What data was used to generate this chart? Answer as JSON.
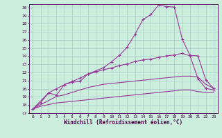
{
  "xlabel": "Windchill (Refroidissement éolien,°C)",
  "bg_color": "#cceedd",
  "line_color": "#993399",
  "grid_color": "#aacccc",
  "xlim": [
    -0.5,
    23.5
  ],
  "ylim": [
    17,
    30.4
  ],
  "yticks": [
    17,
    18,
    19,
    20,
    21,
    22,
    23,
    24,
    25,
    26,
    27,
    28,
    29,
    30
  ],
  "xticks": [
    0,
    1,
    2,
    3,
    4,
    5,
    6,
    7,
    8,
    9,
    10,
    11,
    12,
    13,
    14,
    15,
    16,
    17,
    18,
    19,
    20,
    21,
    22,
    23
  ],
  "s1_x": [
    0,
    1,
    2,
    3,
    4,
    5,
    6,
    7,
    8,
    9,
    10,
    11,
    12,
    13,
    14,
    15,
    16,
    17,
    18,
    19,
    20,
    21,
    22,
    23
  ],
  "s1_y": [
    17.5,
    18.3,
    19.5,
    19.2,
    20.5,
    20.8,
    20.9,
    21.8,
    22.2,
    22.6,
    23.3,
    24.1,
    25.1,
    26.7,
    28.5,
    29.1,
    30.3,
    30.1,
    30.05,
    26.1,
    24.1,
    24.05,
    21.1,
    20.05
  ],
  "s2_x": [
    0,
    2,
    3,
    4,
    5,
    6,
    7,
    8,
    9,
    10,
    11,
    12,
    13,
    14,
    15,
    16,
    17,
    18,
    19,
    20,
    21,
    22,
    23
  ],
  "s2_y": [
    17.5,
    19.5,
    20.0,
    20.5,
    20.9,
    21.3,
    21.8,
    22.05,
    22.35,
    22.55,
    22.85,
    23.05,
    23.35,
    23.55,
    23.65,
    23.85,
    24.05,
    24.15,
    24.35,
    24.05,
    21.25,
    20.05,
    19.85
  ],
  "s3_x": [
    0,
    1,
    2,
    3,
    4,
    5,
    6,
    7,
    8,
    9,
    10,
    11,
    12,
    13,
    14,
    15,
    16,
    17,
    18,
    19,
    20,
    21,
    22,
    23
  ],
  "s3_y": [
    17.5,
    18.05,
    18.55,
    19.05,
    19.25,
    19.55,
    19.85,
    20.15,
    20.35,
    20.55,
    20.65,
    20.75,
    20.85,
    20.95,
    21.05,
    21.15,
    21.25,
    21.35,
    21.45,
    21.55,
    21.55,
    21.45,
    20.55,
    20.05
  ],
  "s4_x": [
    0,
    1,
    2,
    3,
    4,
    5,
    6,
    7,
    8,
    9,
    10,
    11,
    12,
    13,
    14,
    15,
    16,
    17,
    18,
    19,
    20,
    21,
    22,
    23
  ],
  "s4_y": [
    17.5,
    17.85,
    18.05,
    18.25,
    18.35,
    18.45,
    18.55,
    18.65,
    18.75,
    18.85,
    18.95,
    19.05,
    19.15,
    19.25,
    19.35,
    19.45,
    19.55,
    19.65,
    19.75,
    19.85,
    19.85,
    19.65,
    19.55,
    19.55
  ]
}
